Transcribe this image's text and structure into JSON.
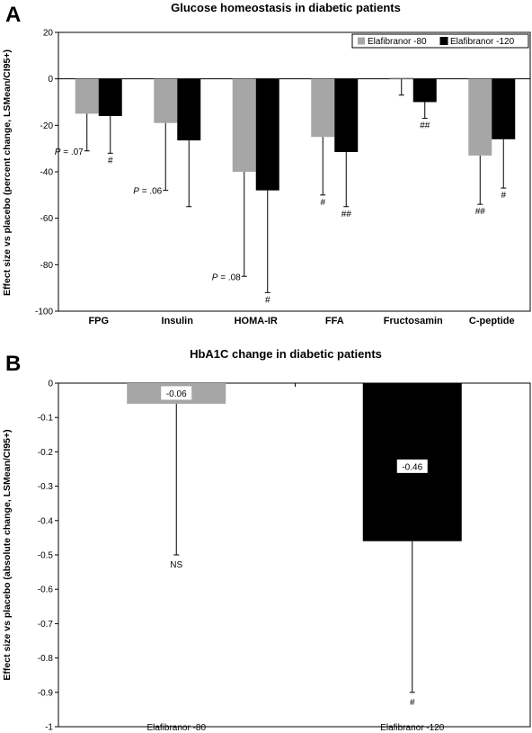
{
  "chart_data": [
    {
      "type": "bar",
      "panel": "A",
      "title": "Glucose homeostasis in diabetic patients",
      "xlabel": "",
      "ylabel": "Effect size vs placebo (percent change, LSMean/CI95+)",
      "ylim": [
        -100,
        20
      ],
      "yticks": [
        "20",
        "0",
        "-20",
        "-40",
        "-60",
        "-80",
        "-100"
      ],
      "tick_values": [
        20,
        0,
        -20,
        -40,
        -60,
        -80,
        -100
      ],
      "categories": [
        "FPG",
        "Insulin",
        "HOMA-IR",
        "FFA",
        "Fructosamin",
        "C-peptide"
      ],
      "legend_position": "top-right",
      "series": [
        {
          "name": "Elafibranor -80",
          "color": "#a6a6a6",
          "values": [
            -15,
            -19,
            -40,
            -25,
            0.5,
            -33
          ],
          "ci_lower": [
            -31,
            -48,
            -85,
            -50,
            -7,
            -54
          ],
          "annotations": [
            {
              "prefix": "P",
              "text": " = .07"
            },
            {
              "prefix": "P",
              "text": " = .06"
            },
            {
              "prefix": "P",
              "text": " = .08"
            },
            {
              "prefix": "",
              "text": "#"
            },
            {
              "prefix": "",
              "text": ""
            },
            {
              "prefix": "",
              "text": "##"
            }
          ]
        },
        {
          "name": "Elafibranor -120",
          "color": "#000000",
          "values": [
            -16,
            -26.5,
            -48,
            -31.5,
            -10,
            -26
          ],
          "ci_lower": [
            -32,
            -55,
            -92,
            -55,
            -17,
            -47
          ],
          "annotations": [
            {
              "prefix": "",
              "text": "#"
            },
            {
              "prefix": "",
              "text": ""
            },
            {
              "prefix": "",
              "text": "#"
            },
            {
              "prefix": "",
              "text": "##"
            },
            {
              "prefix": "",
              "text": "##"
            },
            {
              "prefix": "",
              "text": "#"
            }
          ]
        }
      ]
    },
    {
      "type": "bar",
      "panel": "B",
      "title": "HbA1C change in diabetic patients",
      "xlabel": "",
      "ylabel": "Effect size vs placebo (absolute change, LSMean/CI95+)",
      "ylim": [
        -1,
        0
      ],
      "yticks": [
        "0",
        "-0.1",
        "-0.2",
        "-0.3",
        "-0.4",
        "-0.5",
        "-0.6",
        "-0.7",
        "-0.8",
        "-0.9",
        "-1"
      ],
      "tick_values": [
        0,
        -0.1,
        -0.2,
        -0.3,
        -0.4,
        -0.5,
        -0.6,
        -0.7,
        -0.8,
        -0.9,
        -1
      ],
      "categories": [
        "Elafibranor -80",
        "Elafibranor -120"
      ],
      "values": [
        -0.06,
        -0.46
      ],
      "value_labels": [
        "-0.06",
        "-0.46"
      ],
      "colors": [
        "#a6a6a6",
        "#000000"
      ],
      "ci_lower": [
        -0.5,
        -0.9
      ],
      "annotations": [
        "NS",
        "#"
      ]
    }
  ]
}
